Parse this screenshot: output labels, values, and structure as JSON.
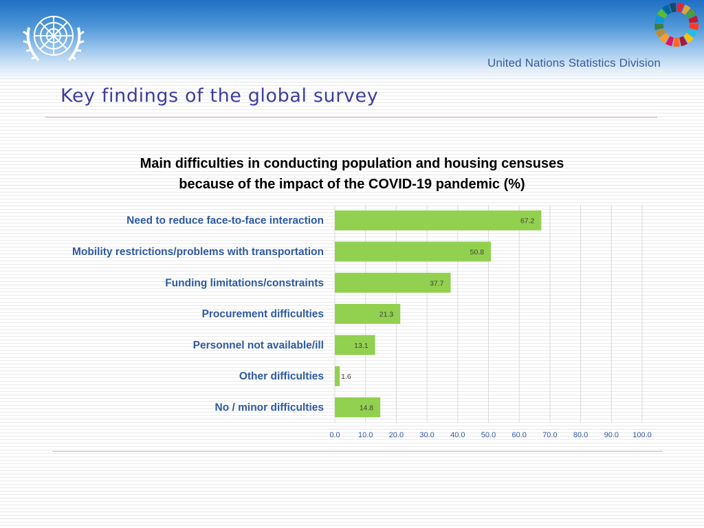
{
  "header": {
    "organization": "United Nations Statistics Division",
    "emblem_icon": "un-emblem-icon",
    "wheel_icon": "sdg-color-wheel-icon"
  },
  "page": {
    "title": "Key findings of the global survey"
  },
  "colors": {
    "bar": "#92d050",
    "title": "#3d3d9e",
    "category_label": "#2e5aa0",
    "grid": "#d9d9d9",
    "rule": "#e5a9a9"
  },
  "chart_data": {
    "type": "bar",
    "orientation": "horizontal",
    "title": "Main difficulties in conducting population and housing censuses because of the impact of the COVID-19 pandemic (%)",
    "title_lines": [
      "Main difficulties in conducting population and housing censuses",
      "because of the impact of the COVID-19 pandemic (%)"
    ],
    "categories": [
      "Need to reduce face-to-face interaction",
      "Mobility restrictions/problems with transportation",
      "Funding limitations/constraints",
      "Procurement difficulties",
      "Personnel not available/ill",
      "Other difficulties",
      "No / minor difficulties"
    ],
    "values": [
      67.2,
      50.8,
      37.7,
      21.3,
      13.1,
      1.6,
      14.8
    ],
    "value_labels": [
      "67.2",
      "50.8",
      "37.7",
      "21.3",
      "13.1",
      "1.6",
      "14.8"
    ],
    "xlim": [
      0,
      100
    ],
    "xticks": [
      "0.0",
      "10.0",
      "20.0",
      "30.0",
      "40.0",
      "50.0",
      "60.0",
      "70.0",
      "80.0",
      "90.0",
      "100.0"
    ],
    "grid": true,
    "legend": "none"
  }
}
